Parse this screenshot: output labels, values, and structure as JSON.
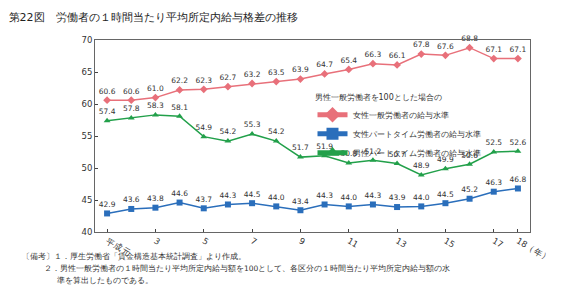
{
  "chart_data": {
    "type": "line",
    "title": "第22図　労働者の１時間当たり平均所定内給与格差の推移",
    "categories": [
      "平成元",
      null,
      "3",
      null,
      "5",
      null,
      "7",
      null,
      "9",
      null,
      "11",
      null,
      "13",
      null,
      "15",
      null,
      "17",
      "18（年）"
    ],
    "series": [
      {
        "name": "女性一般労働者の給与水準",
        "color": "#e8707a",
        "marker": "diamond",
        "values": [
          60.6,
          60.6,
          61.0,
          62.2,
          62.3,
          62.7,
          63.2,
          63.5,
          63.9,
          64.7,
          65.4,
          66.3,
          66.1,
          67.8,
          67.6,
          68.8,
          67.1,
          67.1
        ]
      },
      {
        "name": "女性パートタイム労働者の給与水準",
        "color": "#2a6ebb",
        "marker": "square",
        "values": [
          42.9,
          43.6,
          43.8,
          44.6,
          43.7,
          44.3,
          44.5,
          44.0,
          43.4,
          44.3,
          44.0,
          44.3,
          43.9,
          44.0,
          44.5,
          45.2,
          46.3,
          46.8
        ]
      },
      {
        "name": "男性パートタイム労働者の給与水準",
        "color": "#22a04a",
        "marker": "triangle-up",
        "values": [
          57.4,
          57.8,
          58.3,
          58.1,
          54.9,
          54.2,
          55.3,
          54.2,
          51.7,
          51.9,
          50.8,
          51.2,
          50.7,
          48.9,
          49.9,
          50.6,
          52.5,
          52.6
        ]
      }
    ],
    "legend_title": "男性一般労働者を100とした場合の",
    "notes": [
      "〔備考〕１．厚生労働省「賃金構造基本統計調査」より作成。",
      "２．男性一般労働者の１時間当たり平均所定内給与額を100として、各区分の１時間当たり平均所定内給与額の水",
      "準を算出したものである。"
    ],
    "ylim": [
      40,
      70
    ],
    "yticks": [
      40,
      45,
      50,
      55,
      60,
      65,
      70
    ],
    "grid": false,
    "legend": "right",
    "data_labels": true
  }
}
